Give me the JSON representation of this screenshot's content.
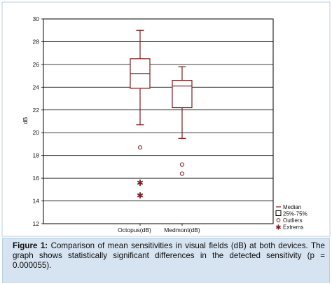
{
  "chart_data": {
    "type": "box",
    "title": "",
    "xlabel": "",
    "ylabel": "dB",
    "ylim": [
      12,
      30
    ],
    "yticks": [
      "12",
      "14",
      "16",
      "18",
      "20",
      "22",
      "24",
      "26",
      "28",
      "30"
    ],
    "grid": true,
    "categories": [
      "Octopus(dB)",
      "Medmont(dB)"
    ],
    "boxes": [
      {
        "category": "Octopus(dB)",
        "whisker_low": 20.7,
        "q1": 23.9,
        "median": 25.2,
        "q3": 26.5,
        "whisker_high": 29.0,
        "outliers": [
          18.7
        ],
        "extremes": [
          15.6,
          14.5
        ]
      },
      {
        "category": "Medmont(dB)",
        "whisker_low": 19.5,
        "q1": 22.2,
        "median": 24.1,
        "q3": 24.6,
        "whisker_high": 25.8,
        "outliers": [
          17.2,
          16.4
        ],
        "extremes": []
      }
    ],
    "legend_position": "bottom-right",
    "legend": [
      {
        "symbol": "line",
        "label": "Median"
      },
      {
        "symbol": "box",
        "label": "25%-75%"
      },
      {
        "symbol": "circle",
        "label": "Outliers"
      },
      {
        "symbol": "star",
        "label": "Extrems"
      }
    ],
    "colors": {
      "series": "#7b1e22",
      "grid": "#000000",
      "background": "#ffffff"
    }
  },
  "caption": {
    "label": "Figure 1:",
    "text": " Comparison of mean sensitivities in visual fields (dB) at both devices. The graph shows statistically significant differences in the detected sensitivity (p = 0.000055)."
  },
  "colors": {
    "caption_bg": "#d6e3f0",
    "caption_border": "#b9cde0"
  }
}
